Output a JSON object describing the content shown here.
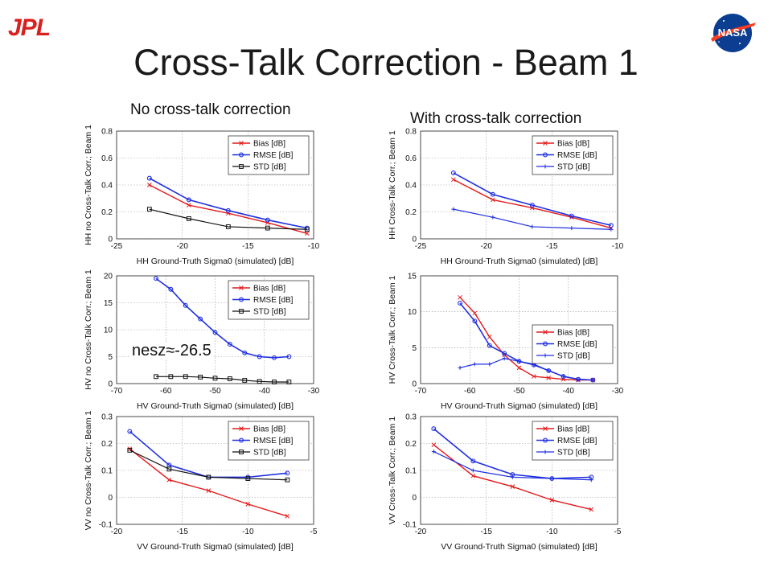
{
  "title": "Cross-Talk Correction - Beam 1",
  "logos": {
    "left_text": "JPL",
    "right_text": "NASA",
    "left_icon": "jpl-logo-icon",
    "right_icon": "nasa-meatball-icon"
  },
  "columns": {
    "left": "No  cross-talk correction",
    "right": "With cross-talk correction"
  },
  "annotation": "nesz≈-26.5",
  "colors": {
    "bias": "#e41a1c",
    "rmse": "#1f2fe0",
    "std_left": "#111111",
    "std_right": "#1f2fe0"
  },
  "chart_data": [
    {
      "type": "line",
      "xlabel": "HH Ground-Truth Sigma0 (simulated) [dB]",
      "ylabel": "HH no Cross-Talk Corr.; Beam 1",
      "xlim": [
        -25,
        -10
      ],
      "ylim": [
        0,
        0.8
      ],
      "xticks": [
        "-25",
        "-20",
        "-15",
        "-10"
      ],
      "yticks": [
        "0",
        "0.2",
        "0.4",
        "0.6",
        "0.8"
      ],
      "legend": "top-right",
      "series": [
        {
          "name": "Bias [dB]",
          "x": [
            -22.5,
            -19.5,
            -16.5,
            -13.5,
            -10.5
          ],
          "values": [
            0.4,
            0.25,
            0.19,
            0.12,
            0.04
          ]
        },
        {
          "name": "RMSE [dB]",
          "x": [
            -22.5,
            -19.5,
            -16.5,
            -13.5,
            -10.5
          ],
          "values": [
            0.45,
            0.29,
            0.21,
            0.14,
            0.08
          ]
        },
        {
          "name": "STD [dB]",
          "x": [
            -22.5,
            -19.5,
            -16.5,
            -13.5,
            -10.5
          ],
          "values": [
            0.22,
            0.15,
            0.09,
            0.08,
            0.07
          ]
        }
      ]
    },
    {
      "type": "line",
      "xlabel": "HH Ground-Truth Sigma0 (simulated) [dB]",
      "ylabel": "HH Cross-Talk Corr.; Beam 1",
      "xlim": [
        -25,
        -10
      ],
      "ylim": [
        0,
        0.8
      ],
      "xticks": [
        "-25",
        "-20",
        "-15",
        "-10"
      ],
      "yticks": [
        "0",
        "0.2",
        "0.4",
        "0.6",
        "0.8"
      ],
      "legend": "top-right",
      "series": [
        {
          "name": "Bias [dB]",
          "x": [
            -22.5,
            -19.5,
            -16.5,
            -13.5,
            -10.5
          ],
          "values": [
            0.44,
            0.29,
            0.23,
            0.16,
            0.08
          ]
        },
        {
          "name": "RMSE [dB]",
          "x": [
            -22.5,
            -19.5,
            -16.5,
            -13.5,
            -10.5
          ],
          "values": [
            0.49,
            0.33,
            0.25,
            0.17,
            0.1
          ]
        },
        {
          "name": "STD [dB]",
          "x": [
            -22.5,
            -19.5,
            -16.5,
            -13.5,
            -10.5
          ],
          "values": [
            0.22,
            0.16,
            0.09,
            0.08,
            0.07
          ]
        }
      ]
    },
    {
      "type": "line",
      "xlabel": "HV Ground-Truth Sigma0 (simulated) [dB]",
      "ylabel": "HV no Cross-Talk Corr.; Beam 1",
      "xlim": [
        -70,
        -30
      ],
      "ylim": [
        0,
        20
      ],
      "xticks": [
        "-70",
        "-60",
        "-50",
        "-40",
        "-30"
      ],
      "yticks": [
        "0",
        "5",
        "10",
        "15",
        "20"
      ],
      "legend": "top-right",
      "series": [
        {
          "name": "Bias [dB]",
          "x": [],
          "values": []
        },
        {
          "name": "RMSE [dB]",
          "x": [
            -62,
            -59,
            -56,
            -53,
            -50,
            -47,
            -44,
            -41,
            -38,
            -35
          ],
          "values": [
            19.5,
            17.5,
            14.5,
            12.0,
            9.5,
            7.3,
            5.7,
            5.0,
            4.8,
            5.0
          ]
        },
        {
          "name": "STD [dB]",
          "x": [
            -62,
            -59,
            -56,
            -53,
            -50,
            -47,
            -44,
            -41,
            -38,
            -35
          ],
          "values": [
            1.3,
            1.3,
            1.3,
            1.2,
            1.0,
            0.9,
            0.6,
            0.4,
            0.3,
            0.3
          ]
        }
      ]
    },
    {
      "type": "line",
      "xlabel": "HV Ground-Truth Sigma0 (simulated) [dB]",
      "ylabel": "HV Cross-Talk Corr.; Beam 1",
      "xlim": [
        -70,
        -30
      ],
      "ylim": [
        0,
        15
      ],
      "xticks": [
        "-70",
        "-60",
        "-50",
        "-40",
        "-30"
      ],
      "yticks": [
        "0",
        "5",
        "10",
        "15"
      ],
      "legend": "right",
      "series": [
        {
          "name": "Bias [dB]",
          "x": [
            -62,
            -59,
            -56,
            -53,
            -50,
            -47,
            -44,
            -41,
            -38,
            -35
          ],
          "values": [
            12.0,
            9.8,
            6.5,
            4.0,
            2.2,
            1.0,
            0.8,
            0.6,
            0.5,
            0.5
          ]
        },
        {
          "name": "RMSE [dB]",
          "x": [
            -62,
            -59,
            -56,
            -53,
            -50,
            -47,
            -44,
            -41,
            -38,
            -35
          ],
          "values": [
            11.2,
            8.7,
            5.3,
            4.2,
            3.1,
            2.6,
            1.8,
            1.0,
            0.6,
            0.5
          ]
        },
        {
          "name": "STD [dB]",
          "x": [
            -62,
            -59,
            -56,
            -53,
            -50,
            -47,
            -44,
            -41,
            -38,
            -35
          ],
          "values": [
            2.2,
            2.7,
            2.7,
            3.5,
            3.1,
            2.7,
            1.8,
            1.0,
            0.6,
            0.5
          ]
        }
      ]
    },
    {
      "type": "line",
      "xlabel": "VV Ground-Truth Sigma0 (simulated) [dB]",
      "ylabel": "VV no Cross-Talk Corr.; Beam 1",
      "xlim": [
        -20,
        -5
      ],
      "ylim": [
        -0.1,
        0.3
      ],
      "xticks": [
        "-20",
        "-15",
        "-10",
        "-5"
      ],
      "yticks": [
        "-0.1",
        "0",
        "0.1",
        "0.2",
        "0.3"
      ],
      "legend": "top-right",
      "series": [
        {
          "name": "Bias [dB]",
          "x": [
            -19,
            -16,
            -13,
            -10,
            -7
          ],
          "values": [
            0.18,
            0.065,
            0.025,
            -0.025,
            -0.07
          ]
        },
        {
          "name": "RMSE [dB]",
          "x": [
            -19,
            -16,
            -13,
            -10,
            -7
          ],
          "values": [
            0.245,
            0.12,
            0.075,
            0.075,
            0.09
          ]
        },
        {
          "name": "STD [dB]",
          "x": [
            -19,
            -16,
            -13,
            -10,
            -7
          ],
          "values": [
            0.175,
            0.105,
            0.075,
            0.07,
            0.065
          ]
        }
      ]
    },
    {
      "type": "line",
      "xlabel": "VV Ground-Truth Sigma0 (simulated) [dB]",
      "ylabel": "VV Cross-Talk Corr.; Beam 1",
      "xlim": [
        -20,
        -5
      ],
      "ylim": [
        -0.1,
        0.3
      ],
      "xticks": [
        "-20",
        "-15",
        "-10",
        "-5"
      ],
      "yticks": [
        "-0.1",
        "0",
        "0.1",
        "0.2",
        "0.3"
      ],
      "legend": "top-right",
      "series": [
        {
          "name": "Bias [dB]",
          "x": [
            -19,
            -16,
            -13,
            -10,
            -7
          ],
          "values": [
            0.195,
            0.08,
            0.04,
            -0.01,
            -0.045
          ]
        },
        {
          "name": "RMSE [dB]",
          "x": [
            -19,
            -16,
            -13,
            -10,
            -7
          ],
          "values": [
            0.255,
            0.135,
            0.085,
            0.07,
            0.075
          ]
        },
        {
          "name": "STD [dB]",
          "x": [
            -19,
            -16,
            -13,
            -10,
            -7
          ],
          "values": [
            0.17,
            0.1,
            0.075,
            0.07,
            0.065
          ]
        }
      ]
    }
  ]
}
